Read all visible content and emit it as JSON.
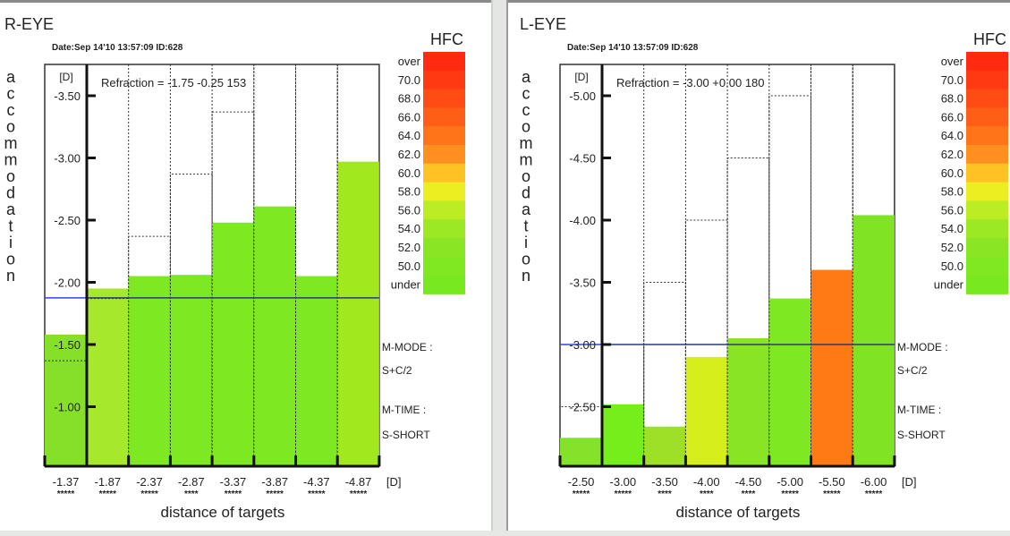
{
  "chart_data": [
    {
      "type": "bar",
      "panel_title": "R-EYE",
      "date_line": "Date:Sep 14'10 13:57:09   ID:628",
      "refraction": "Refraction = -1.75 -0.25 153",
      "ylabel": "accommodation",
      "y_unit": "[D]",
      "x_unit": "[D]",
      "xlabel": "distance of targets",
      "y_ticks": [
        "-3.50",
        "-3.00",
        "-2.50",
        "-2.00",
        "-1.50",
        "-1.00"
      ],
      "y_tick_values": [
        -3.5,
        -3.0,
        -2.5,
        -2.0,
        -1.5,
        -1.0
      ],
      "ylim": [
        -0.53,
        -3.5
      ],
      "reference_line": -1.875,
      "categories": [
        "-1.37",
        "-1.87",
        "-2.37",
        "-2.87",
        "-3.37",
        "-3.87",
        "-4.37",
        "-4.87"
      ],
      "stars": [
        "*****",
        "*****",
        "*****",
        "****",
        "*****",
        "*****",
        "*****",
        "*****"
      ],
      "targets": [
        -1.37,
        -1.87,
        -2.37,
        -2.87,
        -3.37,
        -3.87,
        -4.37,
        -4.87
      ],
      "values": [
        -1.58,
        -1.95,
        -2.05,
        -2.06,
        -2.48,
        -2.61,
        -2.05,
        -2.97
      ],
      "bar_colors": [
        "#86e02a",
        "#a6e82c",
        "#7ee822",
        "#7ee822",
        "#7ee822",
        "#7ee822",
        "#7ee822",
        "#a2e81e"
      ],
      "mode_labels": [
        "M-MODE :",
        "S+C/2",
        "M-TIME :",
        "S-SHORT"
      ]
    },
    {
      "type": "bar",
      "panel_title": "L-EYE",
      "date_line": "Date:Sep 14'10 13:57:09   ID:628",
      "refraction": "Refraction = -3.00 +0.00 180",
      "ylabel": "accommodation",
      "y_unit": "[D]",
      "x_unit": "[D]",
      "xlabel": "distance of targets",
      "y_ticks": [
        "-5.00",
        "-4.50",
        "-4.00",
        "-3.50",
        "-3.00",
        "-2.50"
      ],
      "y_tick_values": [
        -5.0,
        -4.5,
        -4.0,
        -3.5,
        -3.0,
        -2.5
      ],
      "ylim": [
        -2.03,
        -5.0
      ],
      "reference_line": -3.0,
      "categories": [
        "-2.50",
        "-3.00",
        "-3.50",
        "-4.00",
        "-4.50",
        "-5.00",
        "-5.50",
        "-6.00"
      ],
      "stars": [
        "*****",
        "*****",
        "****",
        "****",
        "****",
        "*****",
        "*****",
        "*****"
      ],
      "targets": [
        -2.5,
        -3.0,
        -3.5,
        -4.0,
        -4.5,
        -5.0,
        -5.5,
        -6.0
      ],
      "values": [
        -2.25,
        -2.52,
        -2.34,
        -2.9,
        -3.05,
        -3.37,
        -3.6,
        -4.04
      ],
      "bar_colors": [
        "#84e22a",
        "#76ee1c",
        "#9ee028",
        "#d6ee1c",
        "#88e424",
        "#7ee822",
        "#ff7a14",
        "#80e424"
      ],
      "mode_labels": [
        "M-MODE :",
        "S+C/2",
        "M-TIME :",
        "S-SHORT"
      ]
    }
  ],
  "hfc_legend": {
    "title": "HFC",
    "labels": [
      "over",
      "70.0",
      "68.0",
      "66.0",
      "64.0",
      "62.0",
      "60.0",
      "58.0",
      "56.0",
      "54.0",
      "52.0",
      "50.0",
      "under"
    ],
    "colors": [
      "#ff2a10",
      "#ff3a12",
      "#ff4c14",
      "#ff5e16",
      "#ff7418",
      "#ff9020",
      "#ffc224",
      "#ecee22",
      "#bcec24",
      "#9ce824",
      "#8ae624",
      "#80e822",
      "#78e820"
    ]
  }
}
